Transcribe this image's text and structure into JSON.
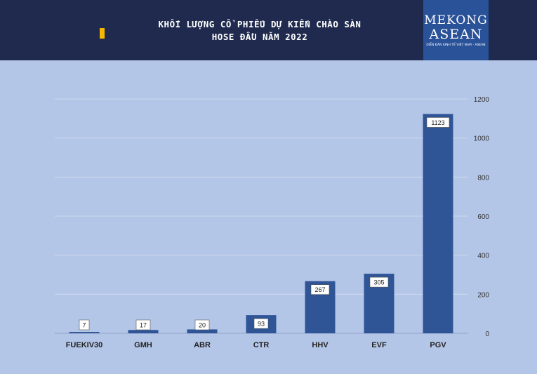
{
  "header": {
    "title_line1": "KHỐI LƯỢNG CỔ PHIẾU DỰ KIẾN CHÀO SÀN",
    "title_line2": "HOSE ĐẦU NĂM 2022"
  },
  "logo": {
    "line1": "MEKONG",
    "line2": "ASEAN",
    "tagline": "DIỄN ĐÀN KINH TẾ VIỆT NAM - ASEAN"
  },
  "colors": {
    "header_bg": "#1f2a4e",
    "plot_bg": "#b4c6e7",
    "bar": "#2f5597",
    "accent": "#f5b800"
  },
  "chart_data": {
    "type": "bar",
    "categories": [
      "FUEKIV30",
      "GMH",
      "ABR",
      "CTR",
      "HHV",
      "EVF",
      "PGV"
    ],
    "values": [
      7,
      17,
      20,
      93,
      267,
      305,
      1123
    ],
    "data_labels": [
      "7",
      "17",
      "20",
      "93",
      "267",
      "305",
      "1123"
    ],
    "y_axis": {
      "position": "right",
      "min": 0,
      "max": 1200,
      "ticks": [
        0,
        200,
        400,
        600,
        800,
        1000,
        1200
      ]
    },
    "grid": true,
    "legend": "none"
  }
}
